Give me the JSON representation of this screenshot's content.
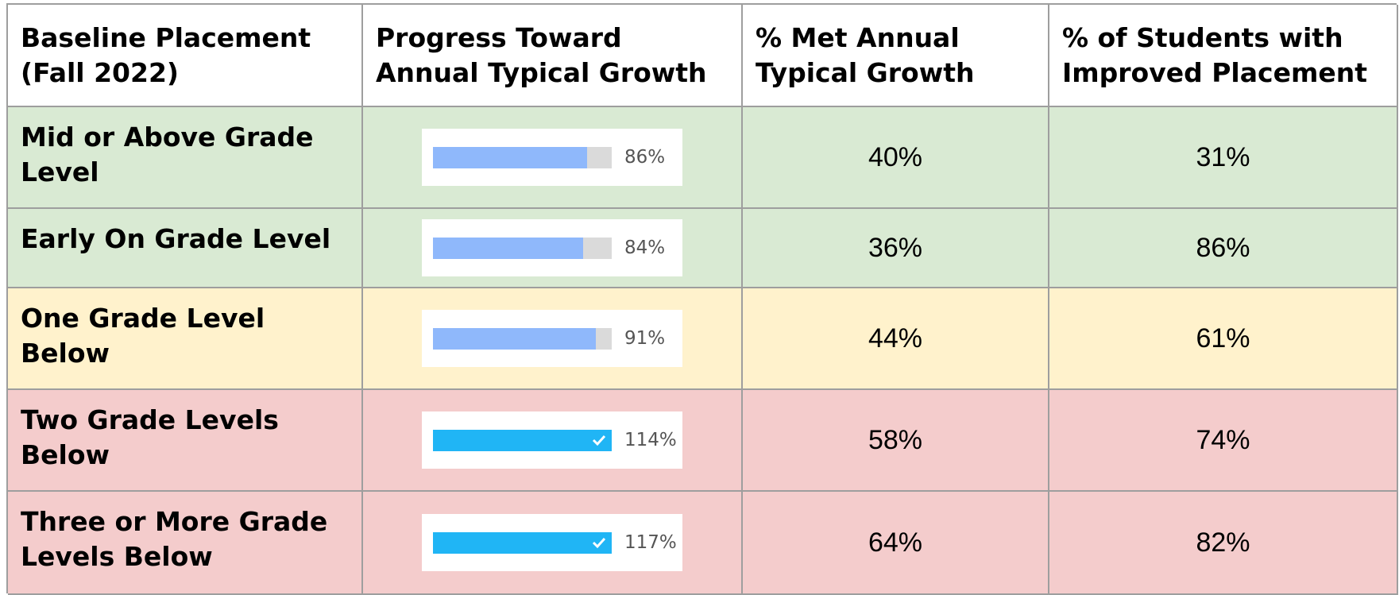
{
  "table": {
    "header": [
      "Baseline Placement (Fall 2022)",
      "Progress Toward Annual Typical Growth",
      "% Met Annual Typical Growth",
      "% of Students with Improved Placement"
    ],
    "track_color": "#dadada",
    "bar_color": "#8fb8fb",
    "complete_color": "#20b5f5",
    "rows": [
      {
        "label": "Mid or Above Grade Level",
        "color": "#d9ead3",
        "progress": {
          "value": 86,
          "label": "86%"
        },
        "met": "40%",
        "improved": "31%"
      },
      {
        "label": "Early On Grade Level",
        "color": "#d9ead3",
        "progress": {
          "value": 84,
          "label": "84%"
        },
        "met": "36%",
        "improved": "86%"
      },
      {
        "label": "One Grade Level Below",
        "color": "#fff2cc",
        "progress": {
          "value": 91,
          "label": "91%"
        },
        "met": "44%",
        "improved": "61%"
      },
      {
        "label": "Two Grade Levels Below",
        "color": "#f4cccc",
        "progress": {
          "value": 114,
          "label": "114%"
        },
        "met": "58%",
        "improved": "74%"
      },
      {
        "label": "Three or More Grade Levels Below",
        "color": "#f4cccc",
        "progress": {
          "value": 117,
          "label": "117%"
        },
        "met": "64%",
        "improved": "82%"
      }
    ]
  }
}
